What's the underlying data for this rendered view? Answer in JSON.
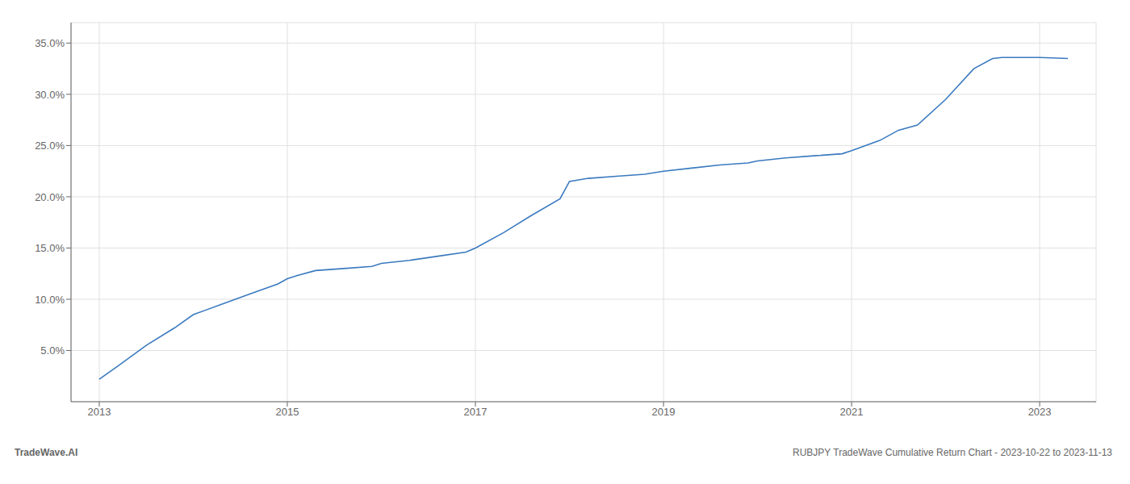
{
  "chart_data": {
    "type": "line",
    "title": "RUBJPY TradeWave Cumulative Return Chart - 2023-10-22 to 2023-11-13",
    "annotations": [
      "TradeWave.AI"
    ],
    "x": [
      2013.0,
      2013.2,
      2013.5,
      2013.8,
      2014.0,
      2014.3,
      2014.6,
      2014.9,
      2015.0,
      2015.1,
      2015.3,
      2015.6,
      2015.9,
      2016.0,
      2016.3,
      2016.6,
      2016.9,
      2017.0,
      2017.3,
      2017.6,
      2017.9,
      2018.0,
      2018.2,
      2018.5,
      2018.8,
      2019.0,
      2019.3,
      2019.6,
      2019.9,
      2020.0,
      2020.3,
      2020.6,
      2020.9,
      2021.0,
      2021.3,
      2021.5,
      2021.7,
      2022.0,
      2022.3,
      2022.5,
      2022.6,
      2022.8,
      2023.0,
      2023.3
    ],
    "values": [
      2.2,
      3.5,
      5.5,
      7.2,
      8.5,
      9.5,
      10.5,
      11.5,
      12.0,
      12.3,
      12.8,
      13.0,
      13.2,
      13.5,
      13.8,
      14.2,
      14.6,
      15.0,
      16.5,
      18.2,
      19.8,
      21.5,
      21.8,
      22.0,
      22.2,
      22.5,
      22.8,
      23.1,
      23.3,
      23.5,
      23.8,
      24.0,
      24.2,
      24.5,
      25.5,
      26.5,
      27.0,
      29.5,
      32.5,
      33.5,
      33.6,
      33.6,
      33.6,
      33.5
    ],
    "color": "#3a7abf",
    "xlim": [
      2012.7,
      2023.6
    ],
    "ylim": [
      0,
      37
    ],
    "xticks": [
      2013,
      2015,
      2017,
      2019,
      2021,
      2023
    ],
    "yticks": [
      {
        "value": 5.0,
        "label": "5.0%"
      },
      {
        "value": 10.0,
        "label": "10.0%"
      },
      {
        "value": 15.0,
        "label": "15.0%"
      },
      {
        "value": 20.0,
        "label": "20.0%"
      },
      {
        "value": 25.0,
        "label": "25.0%"
      },
      {
        "value": 30.0,
        "label": "30.0%"
      },
      {
        "value": 35.0,
        "label": "35.0%"
      }
    ],
    "grid": true
  }
}
